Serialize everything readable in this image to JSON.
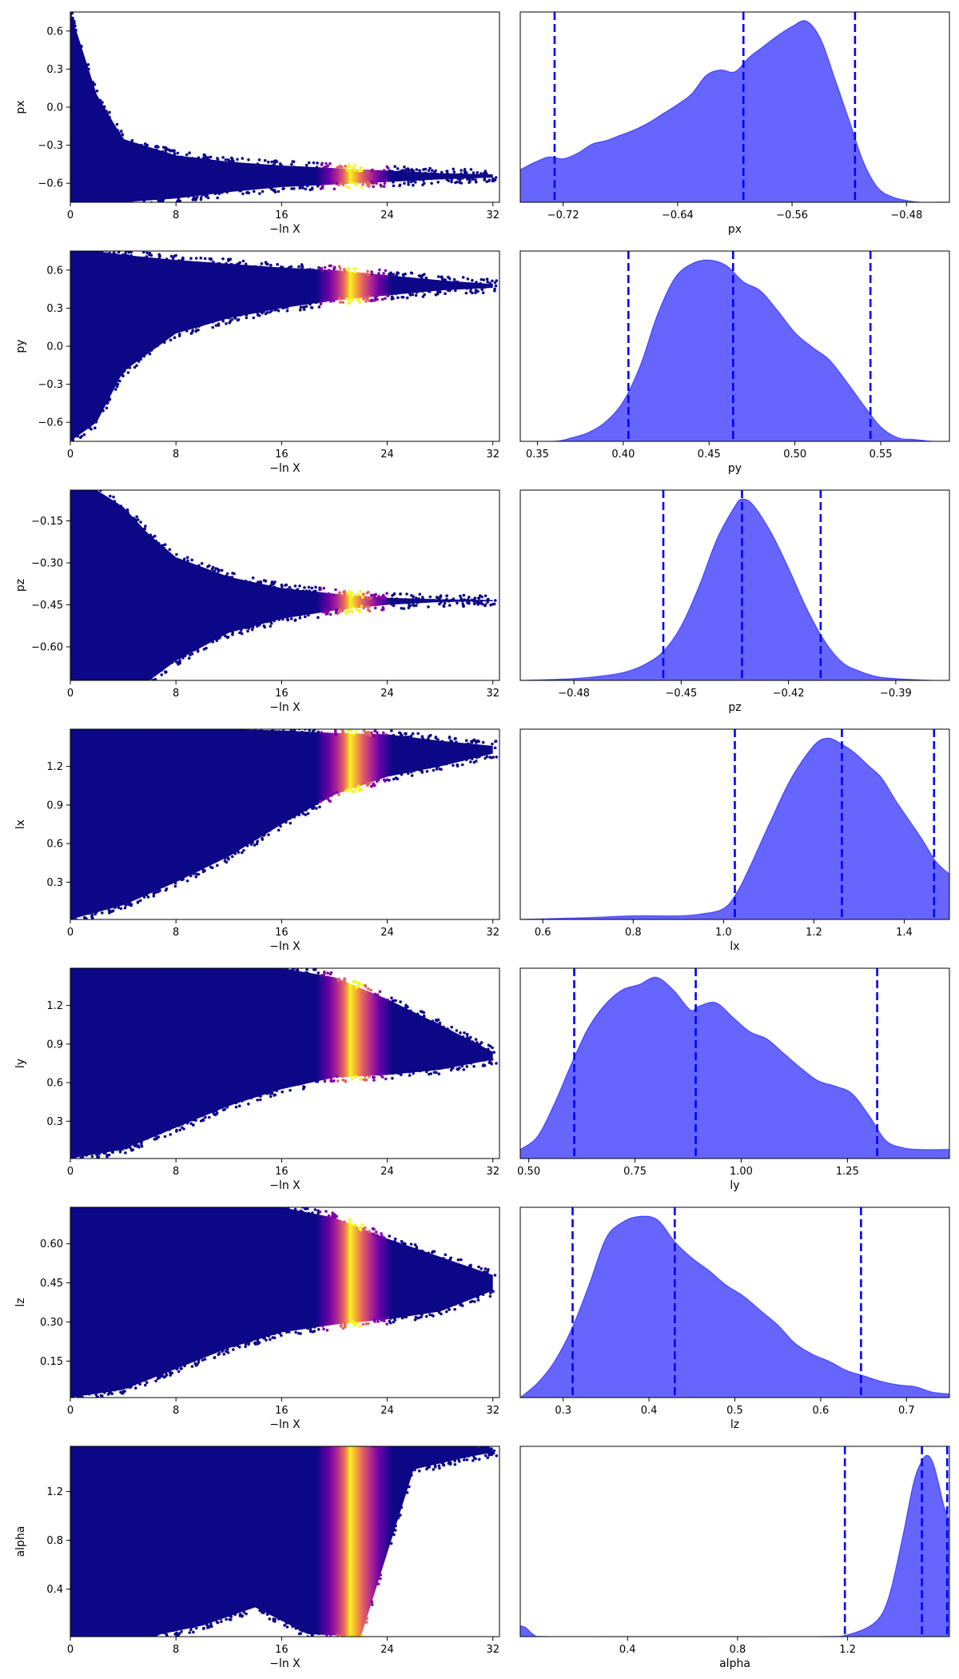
{
  "chart_data": [
    {
      "type": "scatter",
      "param": "px",
      "xlabel": "−ln X",
      "ylabel": "px",
      "xlim": [
        0,
        32.5
      ],
      "ylim": [
        -0.75,
        0.75
      ],
      "xticks": [
        0,
        8,
        16,
        24,
        32
      ],
      "yticks": [
        -0.6,
        -0.3,
        0.0,
        0.3,
        0.6
      ],
      "ytick_labels": [
        "−0.6",
        "−0.3",
        "0.0",
        "0.3",
        "0.6"
      ],
      "point_color_low": "#0d0887",
      "point_color_peak": "#f0f921",
      "peak_logx": 21.5,
      "envelope": [
        [
          0,
          -0.75,
          0.75
        ],
        [
          2,
          -0.75,
          0.1
        ],
        [
          4,
          -0.75,
          -0.25
        ],
        [
          8,
          -0.72,
          -0.38
        ],
        [
          12,
          -0.67,
          -0.43
        ],
        [
          16,
          -0.63,
          -0.46
        ],
        [
          20,
          -0.61,
          -0.48
        ],
        [
          24,
          -0.59,
          -0.5
        ],
        [
          28,
          -0.57,
          -0.52
        ],
        [
          32,
          -0.555,
          -0.53
        ]
      ]
    },
    {
      "type": "area",
      "param": "px",
      "xlabel": "px",
      "xlim": [
        -0.75,
        -0.45
      ],
      "xticks": [
        -0.72,
        -0.64,
        -0.56,
        -0.48
      ],
      "xtick_labels": [
        "−0.72",
        "−0.64",
        "−0.56",
        "−0.48"
      ],
      "fill_color": "#6666ff",
      "line_color": "#0000ff",
      "quantiles": [
        -0.726,
        -0.594,
        -0.516
      ],
      "x": [
        -0.75,
        -0.74,
        -0.73,
        -0.72,
        -0.71,
        -0.7,
        -0.69,
        -0.68,
        -0.67,
        -0.66,
        -0.65,
        -0.64,
        -0.63,
        -0.62,
        -0.61,
        -0.6,
        -0.59,
        -0.58,
        -0.57,
        -0.56,
        -0.55,
        -0.54,
        -0.53,
        -0.52,
        -0.51,
        -0.5,
        -0.49,
        -0.48,
        -0.47,
        -0.46,
        -0.45
      ],
      "density": [
        0.18,
        0.22,
        0.25,
        0.24,
        0.27,
        0.32,
        0.34,
        0.37,
        0.4,
        0.44,
        0.49,
        0.54,
        0.6,
        0.7,
        0.73,
        0.72,
        0.8,
        0.86,
        0.92,
        0.97,
        1.0,
        0.9,
        0.68,
        0.45,
        0.22,
        0.08,
        0.03,
        0.01,
        0.0,
        0.0,
        0.0
      ]
    },
    {
      "type": "scatter",
      "param": "py",
      "xlabel": "−ln X",
      "ylabel": "py",
      "xlim": [
        0,
        32.5
      ],
      "ylim": [
        -0.75,
        0.75
      ],
      "xticks": [
        0,
        8,
        16,
        24,
        32
      ],
      "yticks": [
        -0.6,
        -0.3,
        0.0,
        0.3,
        0.6
      ],
      "ytick_labels": [
        "−0.6",
        "−0.3",
        "0.0",
        "0.3",
        "0.6"
      ],
      "point_color_low": "#0d0887",
      "point_color_peak": "#f0f921",
      "peak_logx": 21.5,
      "envelope": [
        [
          0,
          -0.75,
          0.75
        ],
        [
          2,
          -0.6,
          0.75
        ],
        [
          4,
          -0.2,
          0.72
        ],
        [
          8,
          0.1,
          0.68
        ],
        [
          12,
          0.22,
          0.65
        ],
        [
          16,
          0.3,
          0.62
        ],
        [
          20,
          0.36,
          0.6
        ],
        [
          24,
          0.4,
          0.56
        ],
        [
          28,
          0.44,
          0.52
        ],
        [
          32,
          0.46,
          0.49
        ]
      ]
    },
    {
      "type": "area",
      "param": "py",
      "xlabel": "py",
      "xlim": [
        0.34,
        0.59
      ],
      "xticks": [
        0.35,
        0.4,
        0.45,
        0.5,
        0.55
      ],
      "xtick_labels": [
        "0.35",
        "0.40",
        "0.45",
        "0.50",
        "0.55"
      ],
      "fill_color": "#6666ff",
      "line_color": "#0000ff",
      "quantiles": [
        0.403,
        0.464,
        0.544
      ],
      "x": [
        0.34,
        0.36,
        0.37,
        0.38,
        0.39,
        0.4,
        0.41,
        0.42,
        0.43,
        0.44,
        0.45,
        0.46,
        0.47,
        0.48,
        0.49,
        0.5,
        0.51,
        0.52,
        0.53,
        0.54,
        0.55,
        0.56,
        0.57,
        0.58,
        0.59
      ],
      "density": [
        0.0,
        0.0,
        0.02,
        0.05,
        0.11,
        0.22,
        0.42,
        0.7,
        0.9,
        0.98,
        1.0,
        0.97,
        0.88,
        0.83,
        0.72,
        0.6,
        0.52,
        0.45,
        0.33,
        0.2,
        0.08,
        0.02,
        0.01,
        0.0,
        0.0
      ]
    },
    {
      "type": "scatter",
      "param": "pz",
      "xlabel": "−ln X",
      "ylabel": "pz",
      "xlim": [
        0,
        32.5
      ],
      "ylim": [
        -0.72,
        -0.04
      ],
      "xticks": [
        0,
        8,
        16,
        24,
        32
      ],
      "yticks": [
        -0.6,
        -0.45,
        -0.3,
        -0.15
      ],
      "ytick_labels": [
        "−0.60",
        "−0.45",
        "−0.30",
        "−0.15"
      ],
      "point_color_low": "#0d0887",
      "point_color_peak": "#f0f921",
      "peak_logx": 21.5,
      "envelope": [
        [
          0,
          -0.72,
          -0.04
        ],
        [
          2,
          -0.72,
          -0.04
        ],
        [
          4,
          -0.72,
          -0.1
        ],
        [
          6,
          -0.72,
          -0.2
        ],
        [
          8,
          -0.65,
          -0.28
        ],
        [
          12,
          -0.55,
          -0.35
        ],
        [
          16,
          -0.5,
          -0.39
        ],
        [
          20,
          -0.47,
          -0.41
        ],
        [
          24,
          -0.45,
          -0.425
        ],
        [
          28,
          -0.44,
          -0.43
        ],
        [
          32,
          -0.437,
          -0.433
        ]
      ]
    },
    {
      "type": "area",
      "param": "pz",
      "xlabel": "pz",
      "xlim": [
        -0.495,
        -0.375
      ],
      "xticks": [
        -0.48,
        -0.45,
        -0.42,
        -0.39
      ],
      "xtick_labels": [
        "−0.48",
        "−0.45",
        "−0.42",
        "−0.39"
      ],
      "fill_color": "#6666ff",
      "line_color": "#0000ff",
      "quantiles": [
        -0.455,
        -0.433,
        -0.411
      ],
      "x": [
        -0.495,
        -0.48,
        -0.47,
        -0.465,
        -0.46,
        -0.455,
        -0.45,
        -0.445,
        -0.44,
        -0.435,
        -0.433,
        -0.43,
        -0.425,
        -0.42,
        -0.415,
        -0.41,
        -0.405,
        -0.4,
        -0.395,
        -0.39,
        -0.38,
        -0.375
      ],
      "density": [
        0.0,
        0.01,
        0.03,
        0.05,
        0.09,
        0.16,
        0.3,
        0.52,
        0.78,
        0.96,
        1.0,
        0.97,
        0.82,
        0.62,
        0.4,
        0.22,
        0.1,
        0.05,
        0.02,
        0.01,
        0.0,
        0.0
      ]
    },
    {
      "type": "scatter",
      "param": "lx",
      "xlabel": "−ln X",
      "ylabel": "lx",
      "xlim": [
        0,
        32.5
      ],
      "ylim": [
        0.01,
        1.49
      ],
      "xticks": [
        0,
        8,
        16,
        24,
        32
      ],
      "yticks": [
        0.3,
        0.6,
        0.9,
        1.2
      ],
      "ytick_labels": [
        "0.3",
        "0.6",
        "0.9",
        "1.2"
      ],
      "point_color_low": "#0d0887",
      "point_color_peak": "#f0f921",
      "peak_logx": 21.5,
      "envelope": [
        [
          0,
          0.01,
          1.49
        ],
        [
          4,
          0.12,
          1.49
        ],
        [
          8,
          0.3,
          1.49
        ],
        [
          12,
          0.5,
          1.49
        ],
        [
          16,
          0.75,
          1.48
        ],
        [
          20,
          0.98,
          1.46
        ],
        [
          24,
          1.12,
          1.45
        ],
        [
          28,
          1.2,
          1.4
        ],
        [
          32,
          1.3,
          1.36
        ]
      ]
    },
    {
      "type": "area",
      "param": "lx",
      "xlabel": "lx",
      "xlim": [
        0.55,
        1.5
      ],
      "xticks": [
        0.6,
        0.8,
        1.0,
        1.2,
        1.4
      ],
      "xtick_labels": [
        "0.6",
        "0.8",
        "1.0",
        "1.2",
        "1.4"
      ],
      "fill_color": "#6666ff",
      "line_color": "#0000ff",
      "quantiles": [
        1.025,
        1.262,
        1.466
      ],
      "x": [
        0.55,
        0.7,
        0.8,
        0.9,
        0.95,
        1.0,
        1.03,
        1.06,
        1.1,
        1.15,
        1.2,
        1.23,
        1.26,
        1.29,
        1.32,
        1.35,
        1.38,
        1.41,
        1.44,
        1.47,
        1.5
      ],
      "density": [
        0.0,
        0.01,
        0.02,
        0.02,
        0.03,
        0.06,
        0.15,
        0.3,
        0.52,
        0.78,
        0.96,
        1.0,
        0.97,
        0.92,
        0.85,
        0.78,
        0.66,
        0.55,
        0.44,
        0.32,
        0.25
      ]
    },
    {
      "type": "scatter",
      "param": "ly",
      "xlabel": "−ln X",
      "ylabel": "ly",
      "xlim": [
        0,
        32.5
      ],
      "ylim": [
        0.01,
        1.49
      ],
      "xticks": [
        0,
        8,
        16,
        24,
        32
      ],
      "yticks": [
        0.3,
        0.6,
        0.9,
        1.2
      ],
      "ytick_labels": [
        "0.3",
        "0.6",
        "0.9",
        "1.2"
      ],
      "point_color_low": "#0d0887",
      "point_color_peak": "#f0f921",
      "peak_logx": 21.5,
      "envelope": [
        [
          0,
          0.01,
          1.49
        ],
        [
          4,
          0.08,
          1.49
        ],
        [
          8,
          0.25,
          1.49
        ],
        [
          12,
          0.42,
          1.49
        ],
        [
          16,
          0.55,
          1.49
        ],
        [
          20,
          0.64,
          1.42
        ],
        [
          24,
          0.66,
          1.25
        ],
        [
          28,
          0.7,
          1.05
        ],
        [
          32,
          0.78,
          0.84
        ]
      ]
    },
    {
      "type": "area",
      "param": "ly",
      "xlabel": "ly",
      "xlim": [
        0.48,
        1.49
      ],
      "xticks": [
        0.5,
        0.75,
        1.0,
        1.25
      ],
      "xtick_labels": [
        "0.50",
        "0.75",
        "1.00",
        "1.25"
      ],
      "fill_color": "#6666ff",
      "line_color": "#0000ff",
      "quantiles": [
        0.607,
        0.893,
        1.32
      ],
      "x": [
        0.48,
        0.52,
        0.56,
        0.6,
        0.64,
        0.68,
        0.72,
        0.76,
        0.8,
        0.84,
        0.88,
        0.9,
        0.94,
        0.98,
        1.02,
        1.06,
        1.1,
        1.14,
        1.18,
        1.22,
        1.26,
        1.3,
        1.34,
        1.38,
        1.42,
        1.49
      ],
      "density": [
        0.05,
        0.12,
        0.3,
        0.52,
        0.72,
        0.85,
        0.93,
        0.96,
        1.0,
        0.93,
        0.82,
        0.84,
        0.86,
        0.78,
        0.7,
        0.66,
        0.58,
        0.5,
        0.43,
        0.4,
        0.36,
        0.24,
        0.1,
        0.06,
        0.05,
        0.05
      ]
    },
    {
      "type": "scatter",
      "param": "lz",
      "xlabel": "−ln X",
      "ylabel": "lz",
      "xlim": [
        0,
        32.5
      ],
      "ylim": [
        0.01,
        0.74
      ],
      "xticks": [
        0,
        8,
        16,
        24,
        32
      ],
      "yticks": [
        0.15,
        0.3,
        0.45,
        0.6
      ],
      "ytick_labels": [
        "0.15",
        "0.30",
        "0.45",
        "0.60"
      ],
      "point_color_low": "#0d0887",
      "point_color_peak": "#f0f921",
      "peak_logx": 21.5,
      "envelope": [
        [
          0,
          0.01,
          0.74
        ],
        [
          4,
          0.04,
          0.74
        ],
        [
          8,
          0.12,
          0.74
        ],
        [
          12,
          0.2,
          0.74
        ],
        [
          16,
          0.26,
          0.74
        ],
        [
          20,
          0.29,
          0.7
        ],
        [
          24,
          0.31,
          0.62
        ],
        [
          28,
          0.34,
          0.55
        ],
        [
          32,
          0.42,
          0.48
        ]
      ]
    },
    {
      "type": "area",
      "param": "lz",
      "xlabel": "lz",
      "xlim": [
        0.25,
        0.75
      ],
      "xticks": [
        0.3,
        0.4,
        0.5,
        0.6,
        0.7
      ],
      "xtick_labels": [
        "0.3",
        "0.4",
        "0.5",
        "0.6",
        "0.7"
      ],
      "fill_color": "#6666ff",
      "line_color": "#0000ff",
      "quantiles": [
        0.311,
        0.43,
        0.647
      ],
      "x": [
        0.25,
        0.27,
        0.29,
        0.31,
        0.33,
        0.35,
        0.37,
        0.39,
        0.41,
        0.43,
        0.45,
        0.47,
        0.49,
        0.51,
        0.53,
        0.55,
        0.57,
        0.59,
        0.61,
        0.63,
        0.65,
        0.67,
        0.69,
        0.71,
        0.73,
        0.75
      ],
      "density": [
        0.0,
        0.08,
        0.2,
        0.38,
        0.62,
        0.88,
        0.97,
        1.0,
        0.98,
        0.86,
        0.77,
        0.7,
        0.62,
        0.56,
        0.48,
        0.4,
        0.3,
        0.24,
        0.2,
        0.15,
        0.12,
        0.09,
        0.07,
        0.06,
        0.03,
        0.02
      ]
    },
    {
      "type": "scatter",
      "param": "alpha",
      "xlabel": "−ln X",
      "ylabel": "alpha",
      "xlim": [
        0,
        32.5
      ],
      "ylim": [
        0.01,
        1.57
      ],
      "xticks": [
        0,
        8,
        16,
        24,
        32
      ],
      "yticks": [
        0.4,
        0.8,
        1.2
      ],
      "ytick_labels": [
        "0.4",
        "0.8",
        "1.2"
      ],
      "point_color_low": "#0d0887",
      "point_color_peak": "#f0f921",
      "peak_logx": 21.5,
      "envelope": [
        [
          0,
          0.01,
          1.57
        ],
        [
          6,
          0.01,
          1.57
        ],
        [
          10,
          0.1,
          1.57
        ],
        [
          14,
          0.25,
          1.57
        ],
        [
          18,
          0.03,
          1.57
        ],
        [
          22,
          0.01,
          1.57
        ],
        [
          26,
          1.38,
          1.57
        ],
        [
          30,
          1.48,
          1.57
        ],
        [
          32,
          1.52,
          1.56
        ]
      ]
    },
    {
      "type": "area",
      "param": "alpha",
      "xlabel": "alpha",
      "xlim": [
        0.01,
        1.57
      ],
      "xticks": [
        0.4,
        0.8,
        1.2
      ],
      "xtick_labels": [
        "0.4",
        "0.8",
        "1.2"
      ],
      "fill_color": "#6666ff",
      "line_color": "#0000ff",
      "quantiles": [
        1.19,
        1.47,
        1.562
      ],
      "x": [
        0.01,
        0.03,
        0.06,
        0.1,
        0.4,
        0.8,
        1.1,
        1.2,
        1.3,
        1.35,
        1.4,
        1.44,
        1.47,
        1.49,
        1.51,
        1.53,
        1.55,
        1.57
      ],
      "density": [
        0.06,
        0.05,
        0.01,
        0.0,
        0.0,
        0.0,
        0.0,
        0.01,
        0.08,
        0.22,
        0.55,
        0.85,
        0.97,
        1.0,
        0.96,
        0.85,
        0.72,
        0.64
      ]
    }
  ]
}
